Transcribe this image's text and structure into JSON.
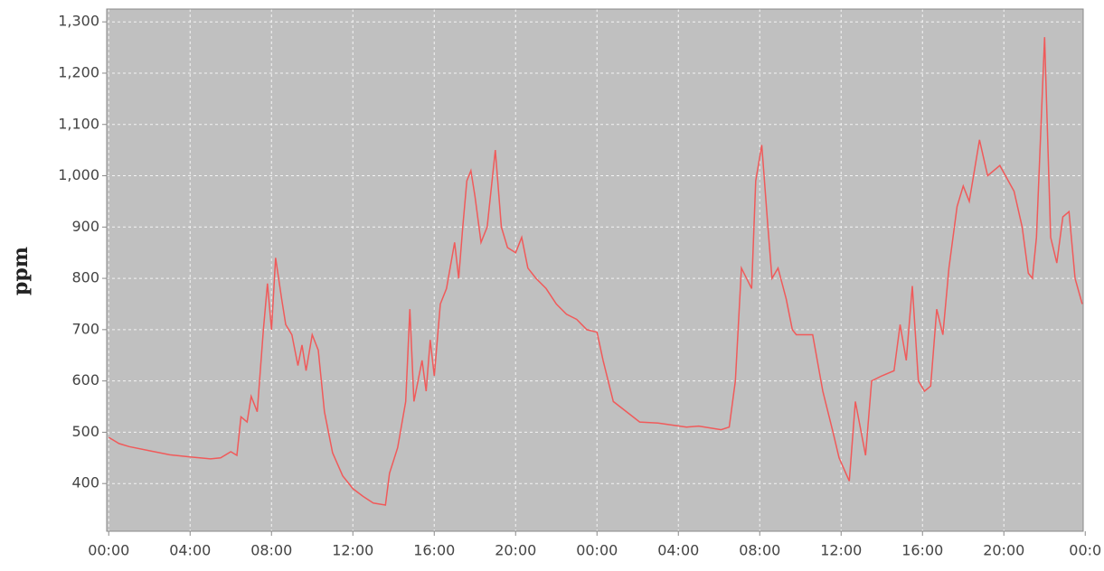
{
  "chart_data": {
    "type": "line",
    "y_label": "ppm",
    "x": [
      0,
      0.5,
      1,
      2,
      3,
      4,
      5,
      5.5,
      6,
      6.3,
      6.5,
      6.8,
      7.0,
      7.3,
      7.6,
      7.8,
      8.0,
      8.2,
      8.5,
      8.7,
      9.0,
      9.3,
      9.5,
      9.7,
      10.0,
      10.3,
      10.6,
      11,
      11.5,
      12,
      12.5,
      13,
      13.6,
      13.8,
      14.2,
      14.6,
      14.8,
      15.0,
      15.4,
      15.6,
      15.8,
      16.0,
      16.3,
      16.6,
      17.0,
      17.2,
      17.4,
      17.6,
      17.8,
      18.0,
      18.3,
      18.6,
      19.0,
      19.3,
      19.6,
      20.0,
      20.3,
      20.6,
      21,
      21.5,
      22,
      22.5,
      23,
      23.5,
      24,
      24.3,
      24.8,
      26.1,
      27,
      28.4,
      29,
      30.1,
      30.5,
      30.8,
      31.1,
      31.6,
      31.8,
      32.1,
      32.4,
      32.6,
      32.9,
      33.3,
      33.6,
      33.8,
      34.6,
      35.1,
      35.6,
      35.9,
      36.4,
      36.7,
      37.2,
      37.5,
      38.0,
      38.6,
      38.9,
      39.2,
      39.5,
      39.8,
      40.1,
      40.4,
      40.7,
      41.0,
      41.3,
      41.7,
      42.0,
      42.3,
      42.8,
      43.2,
      43.8,
      44.5,
      44.9,
      45.2,
      45.4,
      45.6,
      46.0,
      46.3,
      46.6,
      46.9,
      47.2,
      47.5,
      47.85
    ],
    "series": [
      {
        "name": "ppm",
        "color": "#f05a5a",
        "values": [
          490,
          478,
          472,
          464,
          456,
          452,
          448,
          450,
          462,
          455,
          530,
          520,
          570,
          540,
          700,
          790,
          700,
          840,
          760,
          710,
          690,
          630,
          670,
          620,
          690,
          660,
          540,
          460,
          415,
          390,
          375,
          362,
          358,
          420,
          470,
          560,
          740,
          560,
          640,
          580,
          680,
          610,
          750,
          780,
          870,
          800,
          900,
          990,
          1010,
          960,
          870,
          900,
          1050,
          900,
          860,
          850,
          880,
          820,
          800,
          780,
          750,
          730,
          720,
          700,
          695,
          640,
          560,
          520,
          518,
          510,
          512,
          505,
          510,
          600,
          820,
          780,
          990,
          1060,
          900,
          800,
          820,
          760,
          700,
          690,
          690,
          580,
          500,
          450,
          405,
          560,
          455,
          600,
          610,
          620,
          710,
          640,
          785,
          600,
          580,
          590,
          740,
          690,
          820,
          940,
          980,
          950,
          1070,
          1000,
          1020,
          970,
          900,
          810,
          800,
          880,
          1270,
          880,
          830,
          920,
          930,
          800,
          750
        ]
      }
    ],
    "xlim": [
      -0.1,
      47.9
    ],
    "ylim": [
      307,
      1325
    ],
    "xticks": [
      {
        "value": 0,
        "label": "00:00"
      },
      {
        "value": 4,
        "label": "04:00"
      },
      {
        "value": 8,
        "label": "08:00"
      },
      {
        "value": 12,
        "label": "12:00"
      },
      {
        "value": 16,
        "label": "16:00"
      },
      {
        "value": 20,
        "label": "20:00"
      },
      {
        "value": 24,
        "label": "00:00"
      },
      {
        "value": 28,
        "label": "04:00"
      },
      {
        "value": 32,
        "label": "08:00"
      },
      {
        "value": 36,
        "label": "12:00"
      },
      {
        "value": 40,
        "label": "16:00"
      },
      {
        "value": 44,
        "label": "20:00"
      },
      {
        "value": 48,
        "label": "00:0"
      }
    ],
    "yticks": [
      400,
      500,
      600,
      700,
      800,
      900,
      {
        "value": 1000,
        "label": "1,000"
      },
      {
        "value": 1100,
        "label": "1,100"
      },
      {
        "value": 1200,
        "label": "1,200"
      },
      {
        "value": 1300,
        "label": "1,300"
      }
    ],
    "grid": true
  }
}
